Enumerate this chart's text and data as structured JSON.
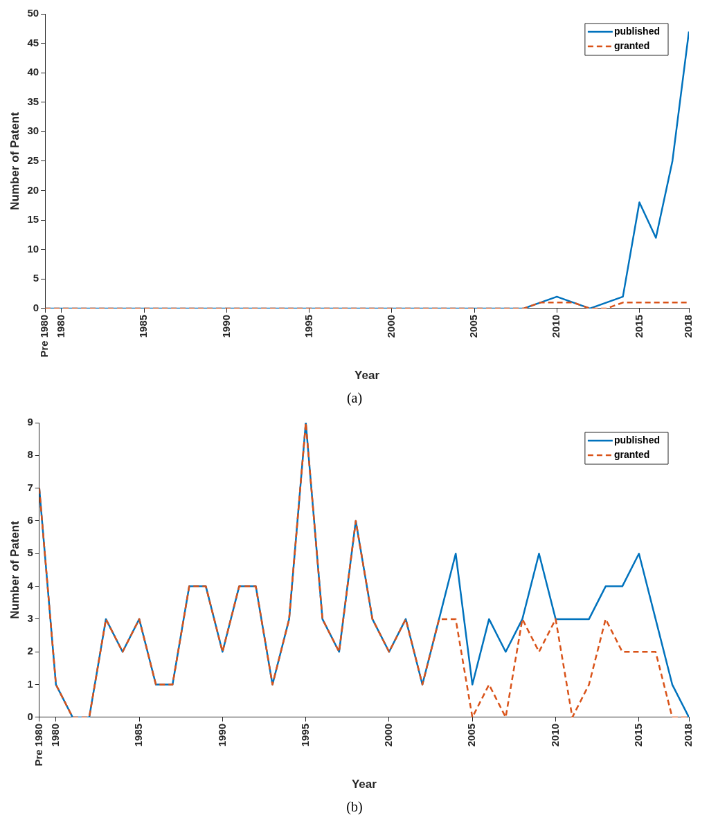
{
  "chart_data": [
    {
      "type": "line",
      "xlabel": "Year",
      "ylabel": "Number of Patent",
      "annotations": [
        "(a)"
      ],
      "legend": "top right",
      "xlim": [
        1979,
        2018
      ],
      "xticks": [
        {
          "value": 1979,
          "label": "Pre 1980"
        },
        1980,
        1985,
        1990,
        1995,
        2000,
        2005,
        2010,
        2015,
        2018
      ],
      "ylim": [
        0,
        50
      ],
      "yticks": [
        0,
        5,
        10,
        15,
        20,
        25,
        30,
        35,
        40,
        45,
        50
      ],
      "x": [
        1979,
        1980,
        1981,
        1982,
        1983,
        1984,
        1985,
        1986,
        1987,
        1988,
        1989,
        1990,
        1991,
        1992,
        1993,
        1994,
        1995,
        1996,
        1997,
        1998,
        1999,
        2000,
        2001,
        2002,
        2003,
        2004,
        2005,
        2006,
        2007,
        2008,
        2009,
        2010,
        2011,
        2012,
        2013,
        2014,
        2015,
        2016,
        2017,
        2018
      ],
      "series": [
        {
          "name": "published",
          "color": "#0072bd",
          "line_style": "solid",
          "values": [
            0,
            0,
            0,
            0,
            0,
            0,
            0,
            0,
            0,
            0,
            0,
            0,
            0,
            0,
            0,
            0,
            0,
            0,
            0,
            0,
            0,
            0,
            0,
            0,
            0,
            0,
            0,
            0,
            0,
            0,
            1,
            2,
            1,
            0,
            1,
            2,
            18,
            12,
            25,
            47
          ]
        },
        {
          "name": "granted",
          "color": "#d95319",
          "line_style": "dashed",
          "values": [
            0,
            0,
            0,
            0,
            0,
            0,
            0,
            0,
            0,
            0,
            0,
            0,
            0,
            0,
            0,
            0,
            0,
            0,
            0,
            0,
            0,
            0,
            0,
            0,
            0,
            0,
            0,
            0,
            0,
            0,
            1,
            1,
            1,
            0,
            0,
            1,
            1,
            1,
            1,
            1
          ]
        }
      ]
    },
    {
      "type": "line",
      "xlabel": "Year",
      "ylabel": "Number of Patent",
      "annotations": [
        "(b)"
      ],
      "legend": "top right",
      "xlim": [
        1979,
        2018
      ],
      "xticks": [
        {
          "value": 1979,
          "label": "Pre 1980"
        },
        1980,
        1985,
        1990,
        1995,
        2000,
        2005,
        2010,
        2015,
        2018
      ],
      "ylim": [
        0,
        9
      ],
      "yticks": [
        0,
        1,
        2,
        3,
        4,
        5,
        6,
        7,
        8,
        9
      ],
      "x": [
        1979,
        1980,
        1981,
        1982,
        1983,
        1984,
        1985,
        1986,
        1987,
        1988,
        1989,
        1990,
        1991,
        1992,
        1993,
        1994,
        1995,
        1996,
        1997,
        1998,
        1999,
        2000,
        2001,
        2002,
        2003,
        2004,
        2005,
        2006,
        2007,
        2008,
        2009,
        2010,
        2011,
        2012,
        2013,
        2014,
        2015,
        2016,
        2017,
        2018
      ],
      "series": [
        {
          "name": "published",
          "color": "#0072bd",
          "line_style": "solid",
          "values": [
            7,
            1,
            0,
            0,
            3,
            2,
            3,
            1,
            1,
            4,
            4,
            2,
            4,
            4,
            1,
            3,
            9,
            3,
            2,
            6,
            3,
            2,
            3,
            1,
            3,
            5,
            1,
            3,
            2,
            3,
            5,
            3,
            3,
            3,
            4,
            4,
            5,
            3,
            1,
            0
          ]
        },
        {
          "name": "granted",
          "color": "#d95319",
          "line_style": "dashed",
          "values": [
            7,
            1,
            0,
            0,
            3,
            2,
            3,
            1,
            1,
            4,
            4,
            2,
            4,
            4,
            1,
            3,
            9,
            3,
            2,
            6,
            3,
            2,
            3,
            1,
            3,
            3,
            0,
            1,
            0,
            3,
            2,
            3,
            0,
            1,
            3,
            2,
            2,
            2,
            0,
            0
          ]
        }
      ]
    }
  ]
}
